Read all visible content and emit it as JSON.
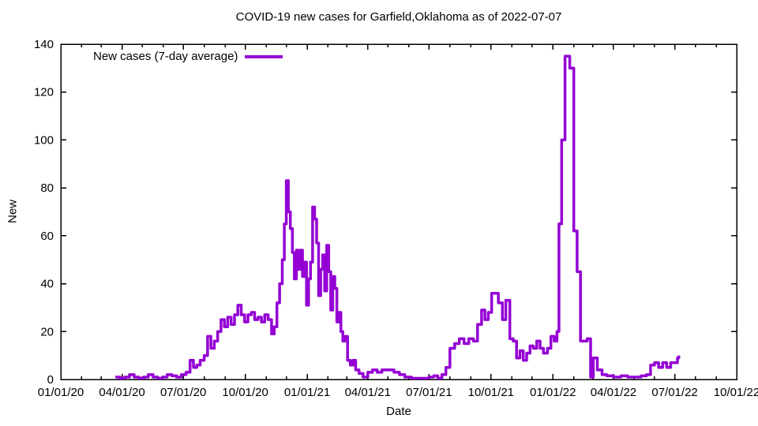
{
  "chart": {
    "title": "COVID-19 new cases for Garfield,Oklahoma as of 2022-07-07",
    "legend_label": "New cases (7-day average)",
    "x_axis_label": "Date",
    "y_axis_label": "New",
    "line_color": "#9400D3",
    "text_color": "#000000",
    "background_color": "#ffffff"
  },
  "chart_data": {
    "type": "line",
    "style": "steps",
    "title": "COVID-19 new cases for Garfield,Oklahoma as of 2022-07-07",
    "xlabel": "Date",
    "ylabel": "New",
    "legend_entries": [
      "New cases (7-day average)"
    ],
    "legend_position": "top-left-inside",
    "grid": false,
    "ylim": [
      0,
      140
    ],
    "y_ticks": [
      0,
      20,
      40,
      60,
      80,
      100,
      120,
      140
    ],
    "x_range": [
      "2020-01-01",
      "2022-10-01"
    ],
    "x_ticks": [
      {
        "date": "2020-01-01",
        "label": "01/01/20"
      },
      {
        "date": "2020-04-01",
        "label": "04/01/20"
      },
      {
        "date": "2020-07-01",
        "label": "07/01/20"
      },
      {
        "date": "2020-10-01",
        "label": "10/01/20"
      },
      {
        "date": "2021-01-01",
        "label": "01/01/21"
      },
      {
        "date": "2021-04-01",
        "label": "04/01/21"
      },
      {
        "date": "2021-07-01",
        "label": "07/01/21"
      },
      {
        "date": "2021-10-01",
        "label": "10/01/21"
      },
      {
        "date": "2022-01-01",
        "label": "01/01/22"
      },
      {
        "date": "2022-04-01",
        "label": "04/01/22"
      },
      {
        "date": "2022-07-01",
        "label": "07/01/22"
      },
      {
        "date": "2022-10-01",
        "label": "10/01/22"
      }
    ],
    "x_minor_ticks": "monthly",
    "series": [
      {
        "name": "New cases (7-day average)",
        "color": "#9400D3",
        "points": [
          [
            "2020-03-22",
            1
          ],
          [
            "2020-03-29",
            0.5
          ],
          [
            "2020-04-05",
            1
          ],
          [
            "2020-04-12",
            2
          ],
          [
            "2020-04-19",
            1
          ],
          [
            "2020-04-26",
            0.5
          ],
          [
            "2020-05-03",
            1
          ],
          [
            "2020-05-10",
            2
          ],
          [
            "2020-05-17",
            1
          ],
          [
            "2020-05-24",
            0.5
          ],
          [
            "2020-05-31",
            1
          ],
          [
            "2020-06-07",
            2
          ],
          [
            "2020-06-14",
            1.5
          ],
          [
            "2020-06-21",
            1
          ],
          [
            "2020-06-28",
            2
          ],
          [
            "2020-07-05",
            3
          ],
          [
            "2020-07-11",
            8
          ],
          [
            "2020-07-16",
            5
          ],
          [
            "2020-07-21",
            6
          ],
          [
            "2020-07-26",
            8
          ],
          [
            "2020-08-01",
            10
          ],
          [
            "2020-08-06",
            18
          ],
          [
            "2020-08-11",
            13
          ],
          [
            "2020-08-16",
            16
          ],
          [
            "2020-08-21",
            20
          ],
          [
            "2020-08-26",
            25
          ],
          [
            "2020-08-31",
            22
          ],
          [
            "2020-09-05",
            26
          ],
          [
            "2020-09-10",
            23
          ],
          [
            "2020-09-15",
            27
          ],
          [
            "2020-09-20",
            31
          ],
          [
            "2020-09-25",
            27
          ],
          [
            "2020-09-30",
            24
          ],
          [
            "2020-10-05",
            27
          ],
          [
            "2020-10-10",
            28
          ],
          [
            "2020-10-15",
            25
          ],
          [
            "2020-10-20",
            26
          ],
          [
            "2020-10-25",
            24
          ],
          [
            "2020-10-30",
            27
          ],
          [
            "2020-11-04",
            25
          ],
          [
            "2020-11-09",
            19
          ],
          [
            "2020-11-13",
            22
          ],
          [
            "2020-11-17",
            32
          ],
          [
            "2020-11-21",
            40
          ],
          [
            "2020-11-25",
            50
          ],
          [
            "2020-11-28",
            65
          ],
          [
            "2020-12-01",
            83
          ],
          [
            "2020-12-04",
            70
          ],
          [
            "2020-12-07",
            63
          ],
          [
            "2020-12-10",
            53
          ],
          [
            "2020-12-13",
            42
          ],
          [
            "2020-12-16",
            54
          ],
          [
            "2020-12-19",
            46
          ],
          [
            "2020-12-22",
            54
          ],
          [
            "2020-12-25",
            43
          ],
          [
            "2020-12-28",
            49
          ],
          [
            "2020-12-31",
            31
          ],
          [
            "2021-01-03",
            42
          ],
          [
            "2021-01-06",
            49
          ],
          [
            "2021-01-09",
            72
          ],
          [
            "2021-01-12",
            67
          ],
          [
            "2021-01-15",
            57
          ],
          [
            "2021-01-18",
            35
          ],
          [
            "2021-01-21",
            46
          ],
          [
            "2021-01-24",
            52
          ],
          [
            "2021-01-27",
            37
          ],
          [
            "2021-01-30",
            56
          ],
          [
            "2021-02-02",
            45
          ],
          [
            "2021-02-05",
            29
          ],
          [
            "2021-02-08",
            43
          ],
          [
            "2021-02-11",
            38
          ],
          [
            "2021-02-14",
            24
          ],
          [
            "2021-02-17",
            28
          ],
          [
            "2021-02-20",
            20
          ],
          [
            "2021-02-23",
            16
          ],
          [
            "2021-02-26",
            18
          ],
          [
            "2021-03-02",
            8
          ],
          [
            "2021-03-06",
            6
          ],
          [
            "2021-03-10",
            8
          ],
          [
            "2021-03-14",
            4
          ],
          [
            "2021-03-19",
            2.5
          ],
          [
            "2021-03-25",
            1
          ],
          [
            "2021-04-01",
            3
          ],
          [
            "2021-04-08",
            4
          ],
          [
            "2021-04-15",
            3
          ],
          [
            "2021-04-22",
            4
          ],
          [
            "2021-05-01",
            4
          ],
          [
            "2021-05-10",
            3
          ],
          [
            "2021-05-18",
            2
          ],
          [
            "2021-05-26",
            1
          ],
          [
            "2021-06-05",
            0.5
          ],
          [
            "2021-06-20",
            0.5
          ],
          [
            "2021-07-01",
            1
          ],
          [
            "2021-07-08",
            1.5
          ],
          [
            "2021-07-14",
            0.5
          ],
          [
            "2021-07-20",
            2
          ],
          [
            "2021-07-26",
            5
          ],
          [
            "2021-08-01",
            13
          ],
          [
            "2021-08-08",
            15
          ],
          [
            "2021-08-15",
            17
          ],
          [
            "2021-08-22",
            15
          ],
          [
            "2021-08-29",
            17
          ],
          [
            "2021-09-05",
            16
          ],
          [
            "2021-09-11",
            23
          ],
          [
            "2021-09-17",
            29
          ],
          [
            "2021-09-22",
            25
          ],
          [
            "2021-09-27",
            28
          ],
          [
            "2021-10-02",
            36
          ],
          [
            "2021-10-12",
            32
          ],
          [
            "2021-10-18",
            25
          ],
          [
            "2021-10-23",
            33
          ],
          [
            "2021-10-29",
            17
          ],
          [
            "2021-11-03",
            16
          ],
          [
            "2021-11-08",
            9
          ],
          [
            "2021-11-13",
            12
          ],
          [
            "2021-11-18",
            8
          ],
          [
            "2021-11-23",
            11
          ],
          [
            "2021-11-28",
            14
          ],
          [
            "2021-12-03",
            13
          ],
          [
            "2021-12-08",
            16
          ],
          [
            "2021-12-13",
            13
          ],
          [
            "2021-12-18",
            11
          ],
          [
            "2021-12-24",
            13
          ],
          [
            "2021-12-29",
            18
          ],
          [
            "2022-01-03",
            16
          ],
          [
            "2022-01-07",
            20
          ],
          [
            "2022-01-10",
            65
          ],
          [
            "2022-01-14",
            100
          ],
          [
            "2022-01-19",
            135
          ],
          [
            "2022-01-26",
            130
          ],
          [
            "2022-02-01",
            62
          ],
          [
            "2022-02-06",
            45
          ],
          [
            "2022-02-11",
            16
          ],
          [
            "2022-02-21",
            17
          ],
          [
            "2022-02-26",
            1
          ],
          [
            "2022-03-02",
            9
          ],
          [
            "2022-03-08",
            4
          ],
          [
            "2022-03-15",
            2
          ],
          [
            "2022-03-22",
            1.5
          ],
          [
            "2022-04-01",
            1
          ],
          [
            "2022-04-12",
            1.5
          ],
          [
            "2022-04-22",
            1
          ],
          [
            "2022-05-02",
            1
          ],
          [
            "2022-05-12",
            1.5
          ],
          [
            "2022-05-20",
            2
          ],
          [
            "2022-05-26",
            6
          ],
          [
            "2022-06-01",
            7
          ],
          [
            "2022-06-07",
            5
          ],
          [
            "2022-06-13",
            7
          ],
          [
            "2022-06-19",
            5
          ],
          [
            "2022-06-25",
            7
          ],
          [
            "2022-07-01",
            7
          ],
          [
            "2022-07-05",
            9
          ],
          [
            "2022-07-07",
            10
          ]
        ]
      }
    ]
  }
}
